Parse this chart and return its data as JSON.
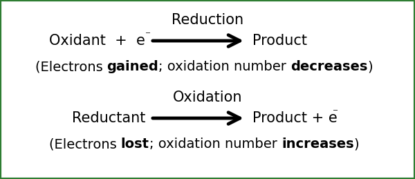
{
  "bg_color": "#ffffff",
  "border_color": "#2e7d32",
  "reduction_title": "Reduction",
  "oxidation_title": "Oxidation",
  "superscript": "⁻",
  "text_color": "#000000",
  "title_fontsize": 15,
  "eq_fontsize": 15,
  "note_fontsize": 14,
  "reduction_note_segments": [
    [
      "(Electrons ",
      false
    ],
    [
      "gained",
      true
    ],
    [
      "; oxidation number ",
      false
    ],
    [
      "decreases",
      true
    ],
    [
      ")",
      false
    ]
  ],
  "oxidation_note_segments": [
    [
      "(Electrons ",
      false
    ],
    [
      "lost",
      true
    ],
    [
      "; oxidation number ",
      false
    ],
    [
      "increases",
      true
    ],
    [
      ")",
      false
    ]
  ]
}
